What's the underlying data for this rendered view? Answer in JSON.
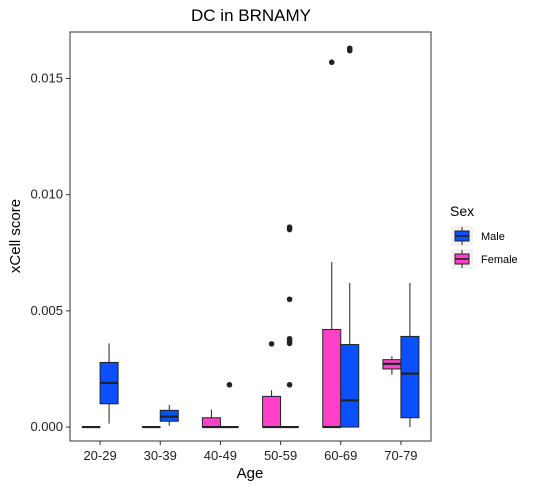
{
  "chart_data": {
    "type": "boxplot",
    "title": "DC in BRNAMY",
    "xlabel": "Age",
    "ylabel": "xCell score",
    "categories": [
      "20-29",
      "30-39",
      "40-49",
      "50-59",
      "60-69",
      "70-79"
    ],
    "y_ticks": [
      "0.000",
      "0.005",
      "0.010",
      "0.015"
    ],
    "ylim": [
      -0.0006,
      0.017
    ],
    "grid": false,
    "legend": {
      "title": "Sex",
      "position": "right"
    },
    "series": [
      {
        "name": "Female",
        "color": "#FF40C8",
        "boxes": [
          {
            "category": "20-29",
            "min": 0,
            "q1": 0,
            "median": 0,
            "q3": 0,
            "max": 0,
            "outliers": []
          },
          {
            "category": "30-39",
            "min": 0,
            "q1": 0,
            "median": 0,
            "q3": 0,
            "max": 0,
            "outliers": []
          },
          {
            "category": "40-49",
            "min": 0,
            "q1": 0,
            "median": 0,
            "q3": 0.0004,
            "max": 0.00075,
            "outliers": []
          },
          {
            "category": "50-59",
            "min": 0,
            "q1": 0,
            "median": 0,
            "q3": 0.00132,
            "max": 0.00158,
            "outliers": [
              0.00358
            ]
          },
          {
            "category": "60-69",
            "min": 0,
            "q1": 0,
            "median": 0,
            "q3": 0.0042,
            "max": 0.0071,
            "outliers": [
              0.0157
            ]
          },
          {
            "category": "70-79",
            "min": 0.00225,
            "q1": 0.0025,
            "median": 0.00272,
            "q3": 0.0029,
            "max": 0.00305,
            "outliers": []
          }
        ]
      },
      {
        "name": "Male",
        "color": "#0A50FF",
        "boxes": [
          {
            "category": "20-29",
            "min": 0.00015,
            "q1": 0.001,
            "median": 0.0019,
            "q3": 0.00278,
            "max": 0.0036,
            "outliers": []
          },
          {
            "category": "30-39",
            "min": 5e-05,
            "q1": 0.00025,
            "median": 0.00045,
            "q3": 0.00072,
            "max": 0.00095,
            "outliers": []
          },
          {
            "category": "40-49",
            "min": 0,
            "q1": 0,
            "median": 0,
            "q3": 0,
            "max": 0,
            "outliers": [
              0.00182
            ]
          },
          {
            "category": "50-59",
            "min": 0,
            "q1": 0,
            "median": 0,
            "q3": 0,
            "max": 0,
            "outliers": [
              0.00182,
              0.0036,
              0.0037,
              0.0038,
              0.0055,
              0.0085,
              0.0086
            ]
          },
          {
            "category": "60-69",
            "min": 0,
            "q1": 0,
            "median": 0.00115,
            "q3": 0.00355,
            "max": 0.0062,
            "outliers": [
              0.0162,
              0.0163
            ]
          },
          {
            "category": "70-79",
            "min": 0,
            "q1": 0.0004,
            "median": 0.0023,
            "q3": 0.0039,
            "max": 0.0062,
            "outliers": []
          }
        ]
      }
    ]
  }
}
